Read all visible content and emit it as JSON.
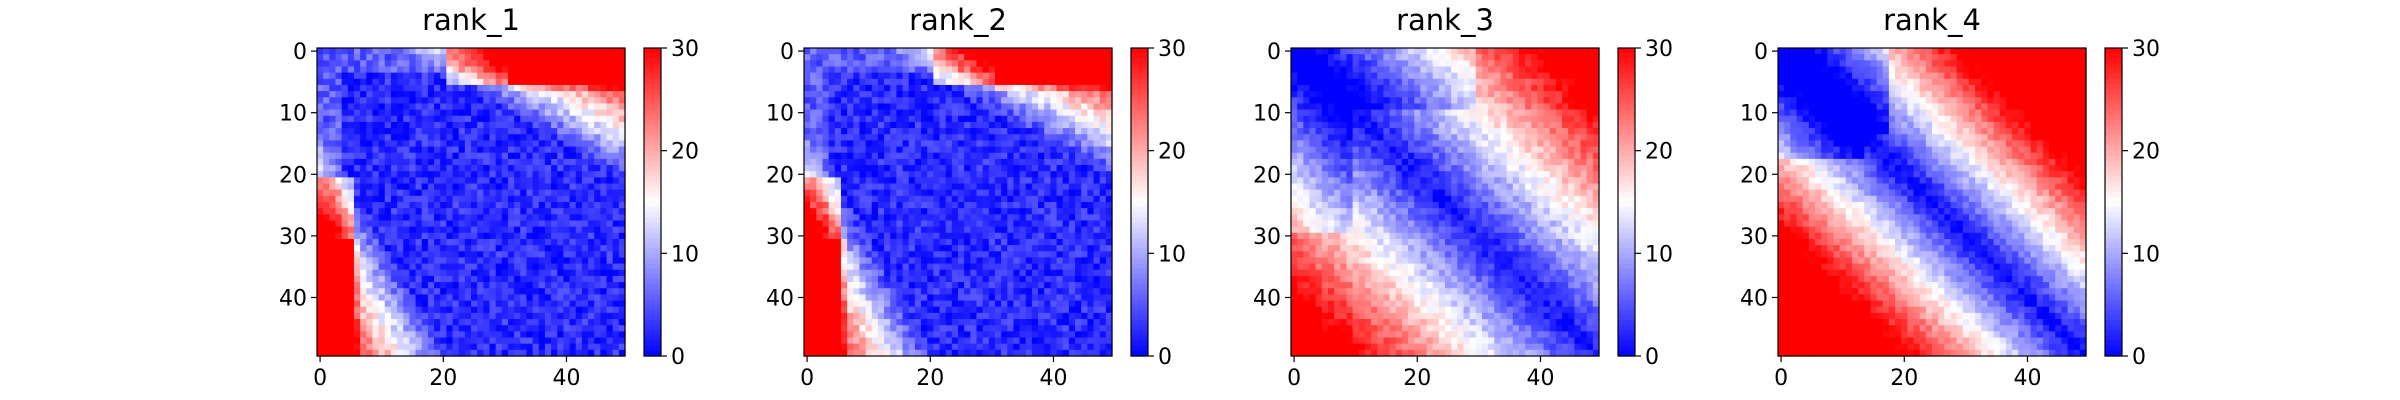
{
  "chart_data": [
    {
      "type": "heatmap",
      "title": "rank_1",
      "pattern": "near_diag_low",
      "xlabel": "",
      "ylabel": "",
      "xlim": [
        0,
        49
      ],
      "ylim": [
        49,
        0
      ],
      "x_ticks": [
        "0",
        "20",
        "40"
      ],
      "y_ticks": [
        "0",
        "10",
        "20",
        "30",
        "40"
      ],
      "colorbar": {
        "range": [
          0,
          30
        ],
        "ticks": [
          "0",
          "10",
          "20",
          "30"
        ],
        "colormap": "bwr"
      }
    },
    {
      "type": "heatmap",
      "title": "rank_2",
      "pattern": "near_diag_low",
      "xlabel": "",
      "ylabel": "",
      "xlim": [
        0,
        49
      ],
      "ylim": [
        49,
        0
      ],
      "x_ticks": [
        "0",
        "20",
        "40"
      ],
      "y_ticks": [
        "0",
        "10",
        "20",
        "30",
        "40"
      ],
      "colorbar": {
        "range": [
          0,
          30
        ],
        "ticks": [
          "0",
          "10",
          "20",
          "30"
        ],
        "colormap": "bwr"
      }
    },
    {
      "type": "heatmap",
      "title": "rank_3",
      "pattern": "distance_gradient",
      "xlabel": "",
      "ylabel": "",
      "xlim": [
        0,
        49
      ],
      "ylim": [
        49,
        0
      ],
      "x_ticks": [
        "0",
        "20",
        "40"
      ],
      "y_ticks": [
        "0",
        "10",
        "20",
        "30",
        "40"
      ],
      "colorbar": {
        "range": [
          0,
          30
        ],
        "ticks": [
          "0",
          "10",
          "20",
          "30"
        ],
        "colormap": "bwr"
      }
    },
    {
      "type": "heatmap",
      "title": "rank_4",
      "pattern": "distance_gradient_sharp",
      "xlabel": "",
      "ylabel": "",
      "xlim": [
        0,
        49
      ],
      "ylim": [
        49,
        0
      ],
      "x_ticks": [
        "0",
        "20",
        "40"
      ],
      "y_ticks": [
        "0",
        "10",
        "20",
        "30",
        "40"
      ],
      "colorbar": {
        "range": [
          0,
          30
        ],
        "ticks": [
          "0",
          "10",
          "20",
          "30"
        ],
        "colormap": "bwr"
      }
    }
  ]
}
